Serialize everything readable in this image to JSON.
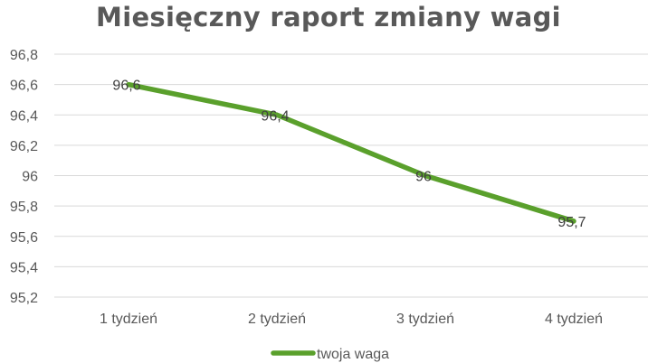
{
  "chart_data": {
    "type": "line",
    "title": "Miesięczny raport zmiany wagi",
    "categories": [
      "1 tydzień",
      "2 tydzień",
      "3 tydzień",
      "4 tydzień"
    ],
    "series": [
      {
        "name": "twoja waga",
        "values": [
          96.6,
          96.4,
          96.0,
          95.7
        ],
        "color": "#5aa02c"
      }
    ],
    "data_labels": [
      "96,6",
      "96,4",
      "96",
      "95,7"
    ],
    "ylim": [
      95.2,
      96.8
    ],
    "yticks": [
      "95,2",
      "95,4",
      "95,6",
      "95,8",
      "96",
      "96,2",
      "96,4",
      "96,6",
      "96,8"
    ],
    "ytick_values": [
      95.2,
      95.4,
      95.6,
      95.8,
      96.0,
      96.2,
      96.4,
      96.6,
      96.8
    ],
    "grid": true,
    "legend": "bottom",
    "gridline_color": "#d9d9d9",
    "axis_color": "#d9d9d9"
  }
}
